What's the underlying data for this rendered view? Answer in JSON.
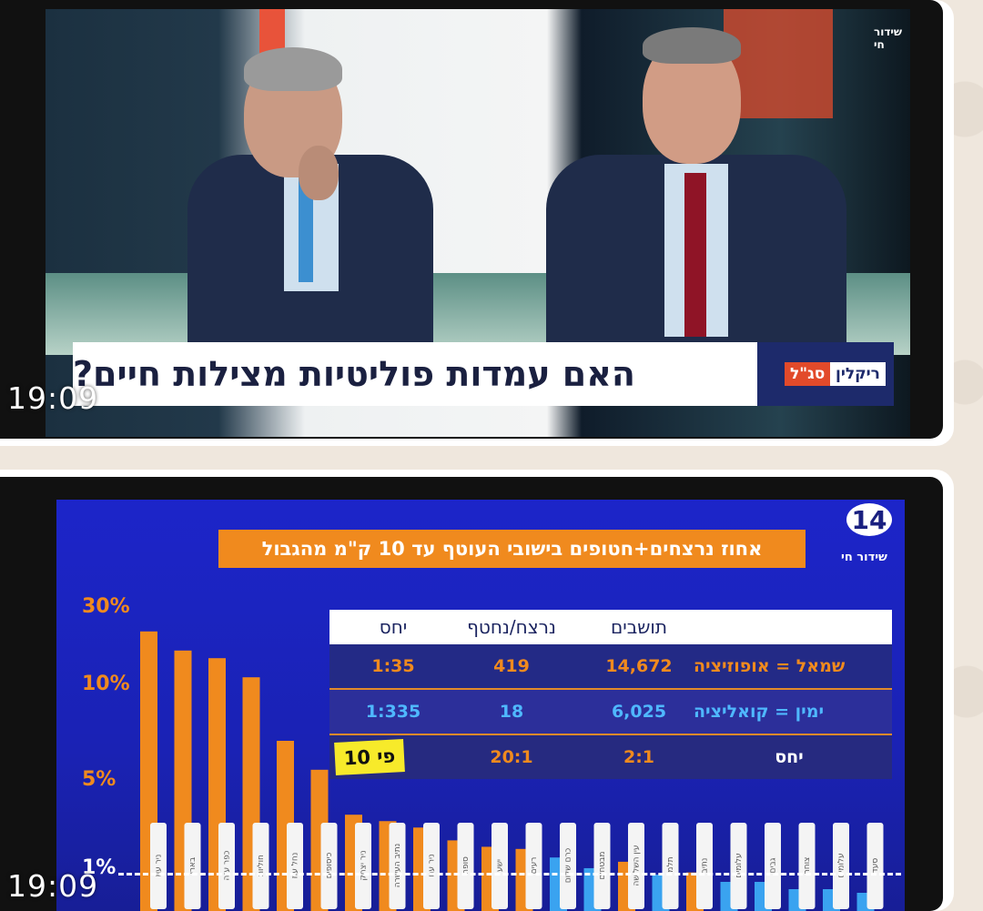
{
  "messages": [
    {
      "time": "19:09",
      "broadcast": {
        "live_label": "שידור חי",
        "question": "האם עמדות פוליטיות מצילות חיים?",
        "host_first": "ריקלין",
        "host_second": "סג\"ל"
      }
    },
    {
      "time": "19:09",
      "graphic": {
        "channel": "14",
        "live_label": "שידור חי",
        "title": "אחוז נרצחים+חטופים בישובי העוטף עד 10 ק\"מ מהגבול",
        "table": {
          "headers": {
            "ratio": "יחס",
            "killed": "נרצח/נחטף",
            "population": "תושבים"
          },
          "rows": [
            {
              "label": "שמאל = אופוזיציה",
              "population": "14,672",
              "killed": "419",
              "ratio": "1:35"
            },
            {
              "label": "ימין = קואליציה",
              "population": "6,025",
              "killed": "18",
              "ratio": "1:335"
            },
            {
              "label": "יחס",
              "population": "2:1",
              "killed": "20:1",
              "badge": "פי 10"
            }
          ]
        }
      }
    }
  ],
  "chart_data": {
    "type": "bar",
    "title": "אחוז נרצחים+חטופים בישובי העוטף עד 10 ק\"מ מהגבול",
    "y_tick_labels": [
      "30%",
      "10%",
      "5%",
      "1%"
    ],
    "categories": [
      "ניר עוז",
      "בארי",
      "כפר עזה",
      "חוליות",
      "נחל עוז",
      "כיסופים",
      "ניר יצחק",
      "נתיב העשרה",
      "ניר עם",
      "סופה",
      "ישע",
      "רעים",
      "כרם שלום",
      "מבטחים",
      "עין השלושה",
      "תלמי",
      "נתיב",
      "עלומים",
      "גבים",
      "צוחר",
      "עלומים",
      "סעד"
    ],
    "values": [
      26,
      21,
      19,
      14,
      7.5,
      6,
      3.8,
      3.5,
      3.2,
      2.6,
      2.3,
      2.2,
      1.8,
      1.3,
      1.6,
      1.0,
      1.1,
      0.8,
      0.8,
      0.6,
      0.6,
      0.5
    ],
    "bar_color_hex": [
      "#f08a1e",
      "#f08a1e",
      "#f08a1e",
      "#f08a1e",
      "#f08a1e",
      "#f08a1e",
      "#f08a1e",
      "#f08a1e",
      "#f08a1e",
      "#f08a1e",
      "#f08a1e",
      "#f08a1e",
      "#3aa3f0",
      "#3aa3f0",
      "#f08a1e",
      "#3aa3f0",
      "#f08a1e",
      "#3aa3f0",
      "#3aa3f0",
      "#3aa3f0",
      "#3aa3f0",
      "#3aa3f0"
    ],
    "reference_line": 1
  }
}
